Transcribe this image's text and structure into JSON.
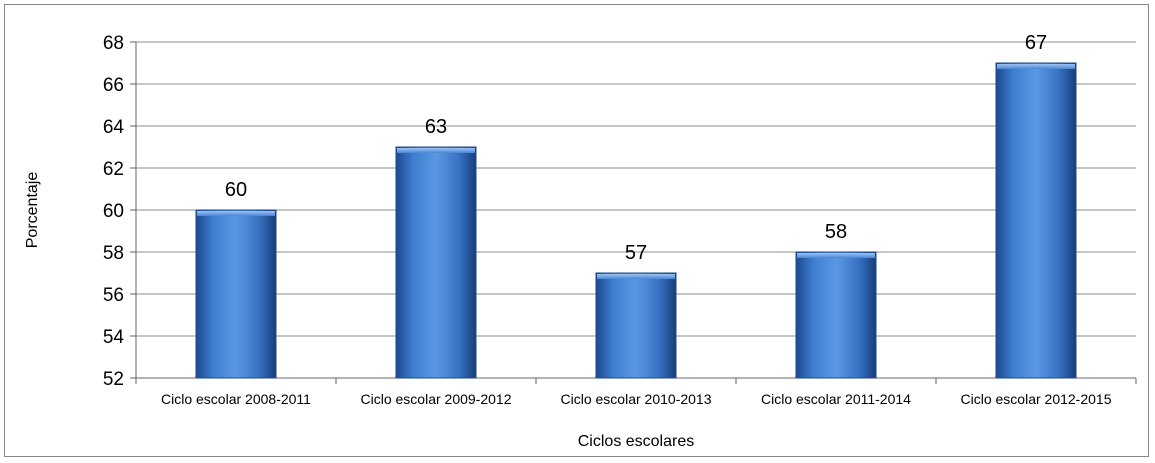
{
  "chart_data": {
    "type": "bar",
    "categories": [
      "Ciclo escolar 2008-2011",
      "Ciclo escolar 2009-2012",
      "Ciclo escolar 2010-2013",
      "Ciclo escolar 2011-2014",
      "Ciclo escolar 2012-2015"
    ],
    "values": [
      60,
      63,
      57,
      58,
      67
    ],
    "title": "",
    "xlabel": "Ciclos escolares",
    "ylabel": "Porcentaje",
    "ylim": [
      52,
      68
    ],
    "yticks": [
      52,
      54,
      56,
      58,
      60,
      62,
      64,
      66,
      68
    ],
    "grid": true,
    "data_labels": true,
    "bar_color": "#2f6bbd"
  }
}
